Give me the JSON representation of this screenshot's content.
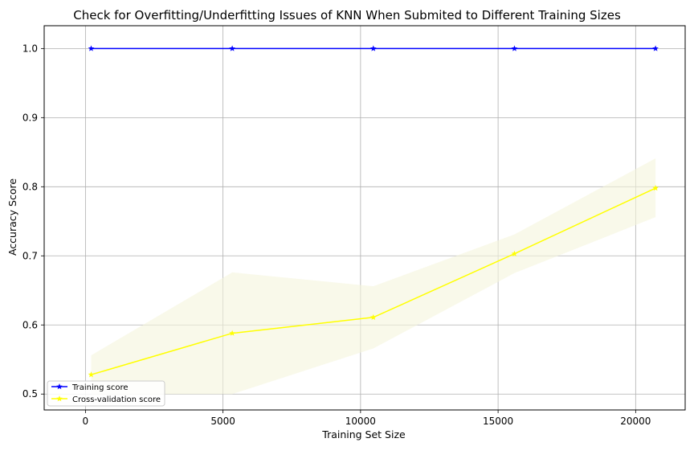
{
  "chart_data": {
    "type": "line",
    "title": "Check for Overfitting/Underfitting Issues of KNN When Submited to Different Training Sizes",
    "xlabel": "Training Set Size",
    "ylabel": "Accuracy Score",
    "xlim": [
      -1500,
      21800
    ],
    "ylim": [
      0.477,
      1.033
    ],
    "x_ticks": [
      0,
      5000,
      10000,
      15000,
      20000
    ],
    "y_ticks": [
      0.5,
      0.6,
      0.7,
      0.8,
      0.9,
      1.0
    ],
    "x_tick_labels": [
      "0",
      "5000",
      "10000",
      "15000",
      "20000"
    ],
    "y_tick_labels": [
      "0.5",
      "0.6",
      "0.7",
      "0.8",
      "0.9",
      "1.0"
    ],
    "grid": true,
    "legend_position": "lower-left",
    "x": [
      207,
      5336,
      10465,
      15594,
      20723
    ],
    "series": [
      {
        "name": "Training score",
        "values": [
          1.0,
          1.0,
          1.0,
          1.0,
          1.0
        ],
        "upper": [
          1.0,
          1.0,
          1.0,
          1.0,
          1.0
        ],
        "lower": [
          1.0,
          1.0,
          1.0,
          1.0,
          1.0
        ],
        "color": "#0000ff",
        "band_color": "#f5f5dc",
        "marker": "star"
      },
      {
        "name": "Cross-validation score",
        "values": [
          0.528,
          0.588,
          0.611,
          0.703,
          0.798
        ],
        "upper": [
          0.556,
          0.676,
          0.656,
          0.731,
          0.841
        ],
        "lower": [
          0.5,
          0.5,
          0.566,
          0.675,
          0.756
        ],
        "color": "#ffff00",
        "band_color": "#f5f5dc",
        "marker": "star"
      }
    ]
  }
}
